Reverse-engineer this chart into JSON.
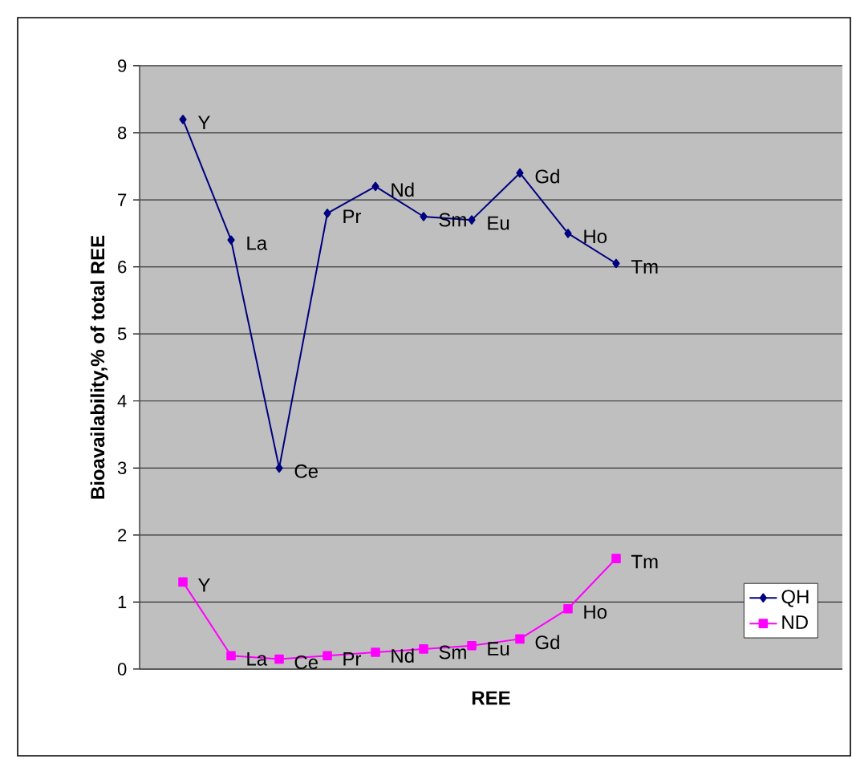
{
  "chart_data": {
    "type": "line",
    "xlabel": "REE",
    "ylabel": "Bioavailability,% of total REE",
    "categories": [
      null,
      null,
      null,
      null,
      null,
      null,
      null,
      null,
      null,
      null
    ],
    "ylim": [
      0,
      9
    ],
    "yticks": [
      0,
      1,
      2,
      3,
      4,
      5,
      6,
      7,
      8,
      9
    ],
    "grid": "y",
    "legend": "bottom right",
    "series": [
      {
        "name": "QH",
        "color": "#000080",
        "marker": "diamond",
        "values": [
          8.2,
          6.4,
          3.0,
          6.8,
          7.2,
          6.75,
          6.7,
          7.4,
          6.5,
          6.05
        ],
        "value_labels": [
          "Y",
          "La",
          "Ce",
          "Pr",
          "Nd",
          "Sm",
          "Eu",
          "Gd",
          "Ho",
          "Tm"
        ]
      },
      {
        "name": "ND",
        "color": "#ff00ff",
        "marker": "square",
        "values": [
          1.3,
          0.2,
          0.15,
          0.2,
          0.25,
          0.3,
          0.35,
          0.45,
          0.9,
          1.65
        ],
        "value_labels": [
          "Y",
          "La",
          "Ce",
          "Pr",
          "Nd",
          "Sm",
          "Eu",
          "Gd",
          "Ho",
          "Tm"
        ]
      }
    ]
  }
}
